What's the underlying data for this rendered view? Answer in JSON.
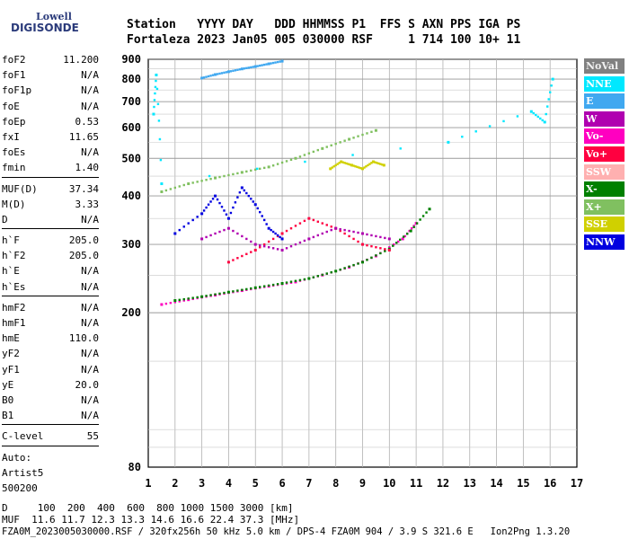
{
  "logo": {
    "line1": "Lowell",
    "line2": "DIGISONDE"
  },
  "header": {
    "line1": "Station   YYYY DAY   DDD HHMMSS P1  FFS S AXN PPS IGA PS",
    "line2": "Fortaleza 2023 Jan05 005 030000 RSF     1 714 100 10+ 11"
  },
  "params": {
    "group1": [
      {
        "label": "foF2",
        "value": "11.200"
      },
      {
        "label": "foF1",
        "value": "N/A"
      },
      {
        "label": "foF1p",
        "value": "N/A"
      },
      {
        "label": "foE",
        "value": "N/A"
      },
      {
        "label": "foEp",
        "value": "0.53"
      },
      {
        "label": "fxI",
        "value": "11.65"
      },
      {
        "label": "foEs",
        "value": "N/A"
      },
      {
        "label": "fmin",
        "value": "1.40"
      }
    ],
    "group2": [
      {
        "label": "MUF(D)",
        "value": "37.34"
      },
      {
        "label": "M(D)",
        "value": "3.33"
      },
      {
        "label": "D",
        "value": "N/A"
      }
    ],
    "group3": [
      {
        "label": "h`F",
        "value": "205.0"
      },
      {
        "label": "h`F2",
        "value": "205.0"
      },
      {
        "label": "h`E",
        "value": "N/A"
      },
      {
        "label": "h`Es",
        "value": "N/A"
      }
    ],
    "group4": [
      {
        "label": "hmF2",
        "value": "N/A"
      },
      {
        "label": "hmF1",
        "value": "N/A"
      },
      {
        "label": "hmE",
        "value": "110.0"
      },
      {
        "label": "yF2",
        "value": "N/A"
      },
      {
        "label": "yF1",
        "value": "N/A"
      },
      {
        "label": "yE",
        "value": "20.0"
      },
      {
        "label": "B0",
        "value": "N/A"
      },
      {
        "label": "B1",
        "value": "N/A"
      }
    ],
    "group5": [
      {
        "label": "C-level",
        "value": "55"
      }
    ],
    "auto": [
      "Auto:",
      "Artist5",
      "500200"
    ]
  },
  "footer": {
    "d_line": "D     100  200  400  600  800 1000 1500 3000 [km]",
    "muf_line": "MUF  11.6 11.7 12.3 13.3 14.6 16.6 22.4 37.3 [MHz]",
    "info_line": "FZA0M_2023005030000.RSF / 320fx256h 50 kHz 5.0 km / DPS-4 FZA0M 904 / 3.9 S 321.6 E   Ion2Png 1.3.20"
  },
  "chart_data": {
    "type": "scatter",
    "title": "",
    "xlabel": "",
    "ylabel": "",
    "xlim": [
      1,
      17
    ],
    "ylim": [
      80,
      900
    ],
    "x_ticks": [
      1,
      2,
      3,
      4,
      5,
      6,
      7,
      8,
      9,
      10,
      11,
      12,
      13,
      14,
      15,
      16,
      17
    ],
    "y_ticks": [
      80,
      200,
      300,
      400,
      500,
      600,
      700,
      800,
      900
    ],
    "y_scale": "log",
    "grid": true,
    "legend_position": "right",
    "legend": [
      {
        "name": "NoVal",
        "color": "#808080"
      },
      {
        "name": "NNE",
        "color": "#00e8ff"
      },
      {
        "name": "E",
        "color": "#40a8f0"
      },
      {
        "name": "W",
        "color": "#b000b0"
      },
      {
        "name": "Vo-",
        "color": "#ff00c0"
      },
      {
        "name": "Vo+",
        "color": "#ff0040"
      },
      {
        "name": "SSW",
        "color": "#ffb0b0"
      },
      {
        "name": "X-",
        "color": "#008000"
      },
      {
        "name": "X+",
        "color": "#80c060"
      },
      {
        "name": "SSE",
        "color": "#d0d000"
      },
      {
        "name": "NNW",
        "color": "#0000e0"
      }
    ],
    "series": [
      {
        "name": "E",
        "points": [
          [
            3.0,
            805
          ],
          [
            3.5,
            822
          ],
          [
            4.0,
            836
          ],
          [
            4.5,
            850
          ],
          [
            5.0,
            862
          ],
          [
            5.5,
            876
          ],
          [
            6.0,
            890
          ]
        ]
      },
      {
        "name": "Vo-",
        "points": [
          [
            1.5,
            210
          ],
          [
            2.5,
            216
          ],
          [
            3.5,
            222
          ],
          [
            4.5,
            228
          ],
          [
            5.5,
            234
          ],
          [
            6.5,
            240
          ],
          [
            7.5,
            250
          ],
          [
            8.5,
            262
          ],
          [
            9.5,
            280
          ],
          [
            10.5,
            310
          ],
          [
            11.0,
            340
          ]
        ]
      },
      {
        "name": "X-",
        "points": [
          [
            2.0,
            215
          ],
          [
            3.0,
            220
          ],
          [
            4.0,
            226
          ],
          [
            5.0,
            232
          ],
          [
            6.0,
            238
          ],
          [
            7.0,
            245
          ],
          [
            8.0,
            256
          ],
          [
            9.0,
            270
          ],
          [
            10.0,
            292
          ],
          [
            10.8,
            325
          ],
          [
            11.5,
            370
          ]
        ]
      },
      {
        "name": "Vo+",
        "points": [
          [
            4.0,
            270
          ],
          [
            5.0,
            290
          ],
          [
            6.0,
            320
          ],
          [
            7.0,
            350
          ],
          [
            8.0,
            330
          ],
          [
            9.0,
            300
          ],
          [
            10.0,
            290
          ]
        ]
      },
      {
        "name": "W",
        "points": [
          [
            3.0,
            310
          ],
          [
            4.0,
            330
          ],
          [
            5.0,
            300
          ],
          [
            6.0,
            290
          ],
          [
            7.0,
            310
          ],
          [
            8.0,
            330
          ],
          [
            9.0,
            320
          ],
          [
            10.0,
            310
          ]
        ]
      },
      {
        "name": "NNW",
        "points": [
          [
            2.0,
            320
          ],
          [
            3.0,
            360
          ],
          [
            3.5,
            400
          ],
          [
            4.0,
            350
          ],
          [
            4.5,
            420
          ],
          [
            5.0,
            380
          ],
          [
            5.5,
            330
          ],
          [
            6.0,
            310
          ]
        ]
      },
      {
        "name": "SSE",
        "points": [
          [
            7.8,
            470
          ],
          [
            8.2,
            490
          ],
          [
            8.6,
            480
          ],
          [
            9.0,
            470
          ],
          [
            9.4,
            490
          ],
          [
            9.8,
            480
          ]
        ]
      },
      {
        "name": "X+",
        "points": [
          [
            1.5,
            410
          ],
          [
            2.5,
            430
          ],
          [
            3.5,
            445
          ],
          [
            4.5,
            460
          ],
          [
            5.5,
            475
          ],
          [
            6.5,
            500
          ],
          [
            7.5,
            530
          ],
          [
            8.5,
            560
          ],
          [
            9.5,
            590
          ]
        ]
      },
      {
        "name": "NNE",
        "points": [
          [
            1.2,
            650
          ],
          [
            1.3,
            820
          ],
          [
            1.5,
            430
          ],
          [
            12.2,
            550
          ],
          [
            15.3,
            660
          ],
          [
            15.8,
            620
          ],
          [
            16.1,
            800
          ]
        ]
      }
    ]
  }
}
